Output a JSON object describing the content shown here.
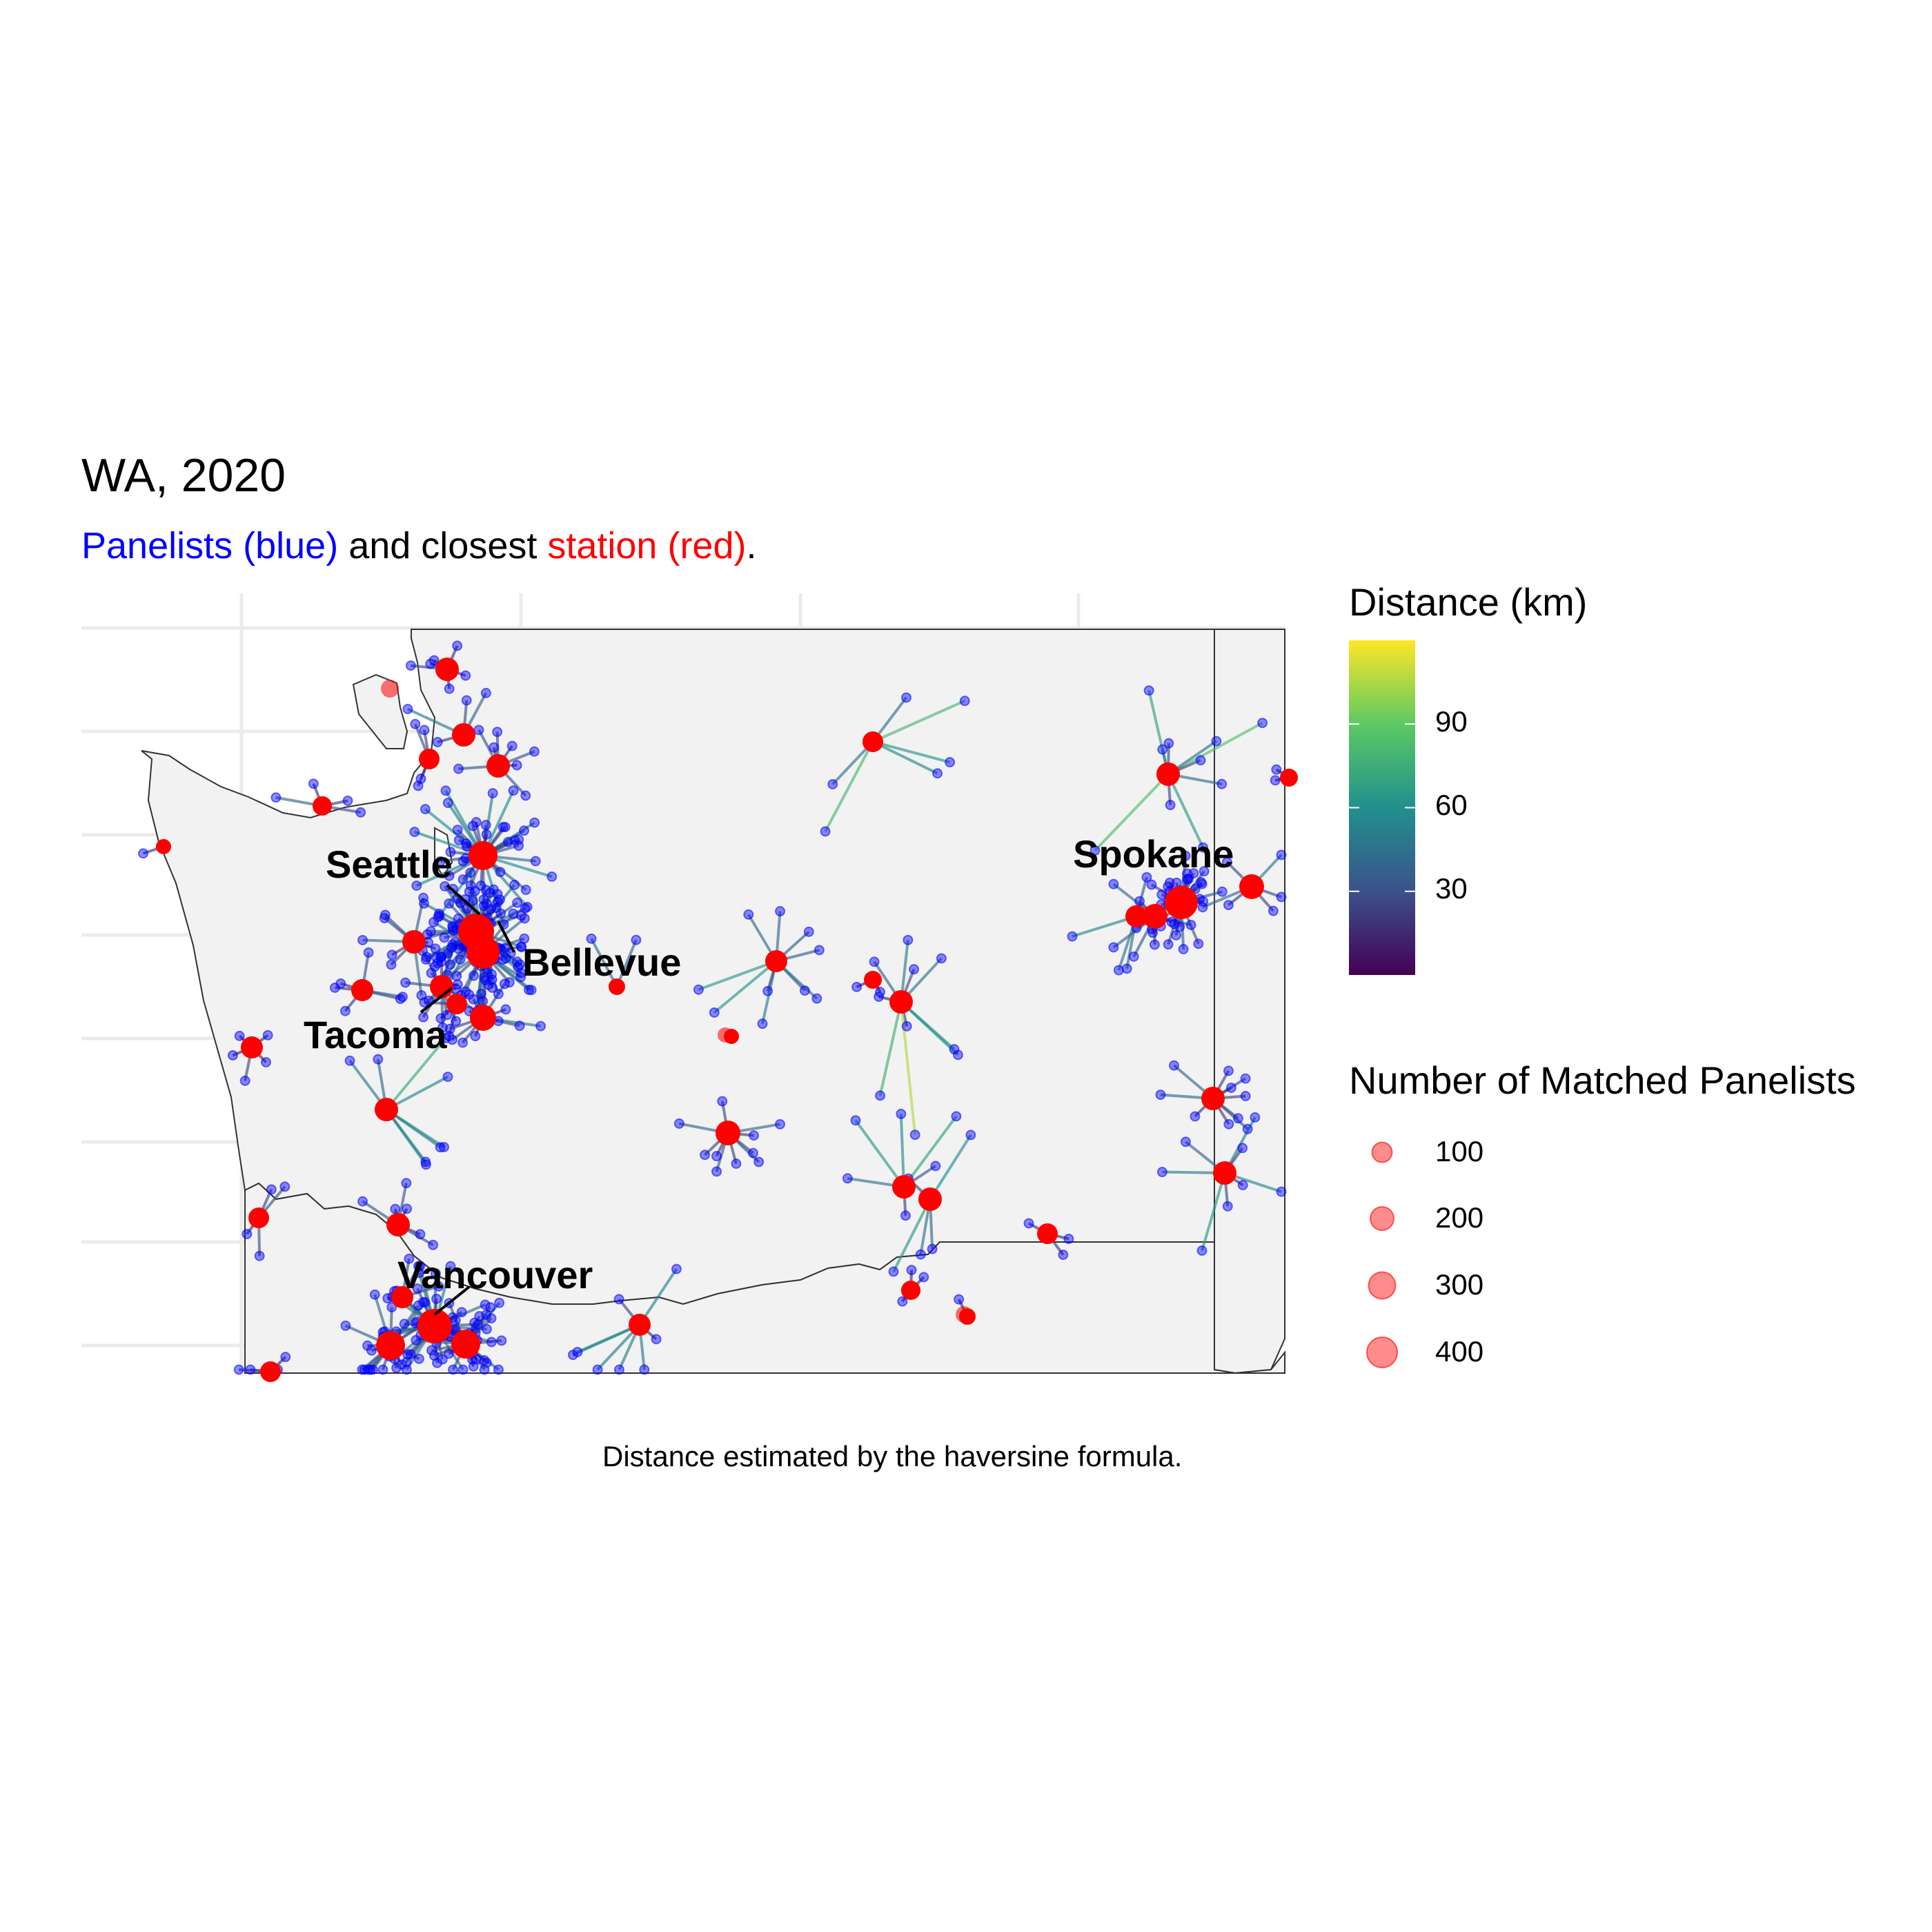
{
  "title": "WA, 2020",
  "subtitle": {
    "part1": "Panelists (blue)",
    "part2": " and closest ",
    "part3": "station (red)",
    "part4": "."
  },
  "caption": "Distance estimated by the haversine formula.",
  "colors": {
    "panelist": "#0000ff",
    "station": "#ff0000",
    "land": "#f2f2f2",
    "border": "#333333",
    "grid": "#ebebeb",
    "viridis": [
      "#440154",
      "#3b528b",
      "#21908d",
      "#5dc963",
      "#fde725"
    ]
  },
  "legend": {
    "distance": {
      "title": "Distance (km)",
      "ticks": [
        "30",
        "60",
        "90"
      ],
      "tick_values": [
        30,
        60,
        90
      ],
      "range": [
        0,
        120
      ]
    },
    "size": {
      "title": "Number of Matched Panelists",
      "entries": [
        "100",
        "200",
        "300",
        "400"
      ],
      "values": [
        100,
        200,
        300,
        400
      ]
    }
  },
  "cities": [
    "Seattle",
    "Bellevue",
    "Tacoma",
    "Spokane",
    "Vancouver"
  ],
  "map_data": {
    "type": "map",
    "region": "Washington State",
    "stations": [
      {
        "lon": -122.48,
        "lat": 48.75,
        "panelists": 60
      },
      {
        "lon": -122.34,
        "lat": 48.42,
        "panelists": 50
      },
      {
        "lon": -122.29,
        "lat": 47.62,
        "panelists": 420
      },
      {
        "lon": -122.2,
        "lat": 47.61,
        "panelists": 300
      },
      {
        "lon": -122.44,
        "lat": 47.25,
        "panelists": 150
      },
      {
        "lon": -117.42,
        "lat": 47.66,
        "panelists": 250
      },
      {
        "lon": -122.67,
        "lat": 45.63,
        "panelists": 400
      },
      {
        "lon": -120.51,
        "lat": 46.6,
        "panelists": 40
      },
      {
        "lon": -119.28,
        "lat": 47.13,
        "panelists": 30
      }
    ]
  }
}
